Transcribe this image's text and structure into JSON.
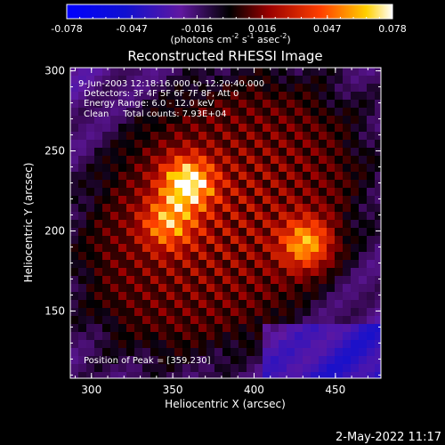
{
  "chart_data": {
    "type": "heatmap",
    "title": "Reconstructed RHESSI Image",
    "xlabel": "Heliocentric X (arcsec)",
    "ylabel": "Heliocentric Y (arcsec)",
    "xlim": [
      287,
      478
    ],
    "ylim": [
      108,
      302
    ],
    "xticks": [
      300,
      350,
      400,
      450
    ],
    "yticks": [
      150,
      200,
      250,
      300
    ],
    "colorbar": {
      "range": [
        -0.078,
        0.078
      ],
      "ticks": [
        "-0.078",
        "-0.047",
        "-0.016",
        "0.016",
        "0.047",
        "0.078"
      ],
      "unit_text": "(photons cm",
      "unit_sup1": "-2",
      "unit_mid": " s",
      "unit_sup2": "-1",
      "unit_end": " asec",
      "unit_sup3": "-2",
      "unit_close": ")"
    },
    "annotations": {
      "time": "9-Jun-2003 12:18:16.000 to 12:20:40.000",
      "detectors": "Detectors: 3F 4F 5F 6F 7F 8F, Att 0",
      "energy": "Energy Range: 6.0 - 12.0 keV",
      "clean": "Clean     Total counts: 7.93E+04",
      "peak": "Position of Peak = [359,230]"
    },
    "peak_position": [
      359,
      230
    ],
    "sources": [
      {
        "x": 359,
        "y": 230,
        "intensity": 0.078
      },
      {
        "x": 347,
        "y": 205,
        "intensity": 0.05
      },
      {
        "x": 432,
        "y": 192,
        "intensity": 0.06
      }
    ],
    "timestamp": "2-May-2022 11:17"
  }
}
